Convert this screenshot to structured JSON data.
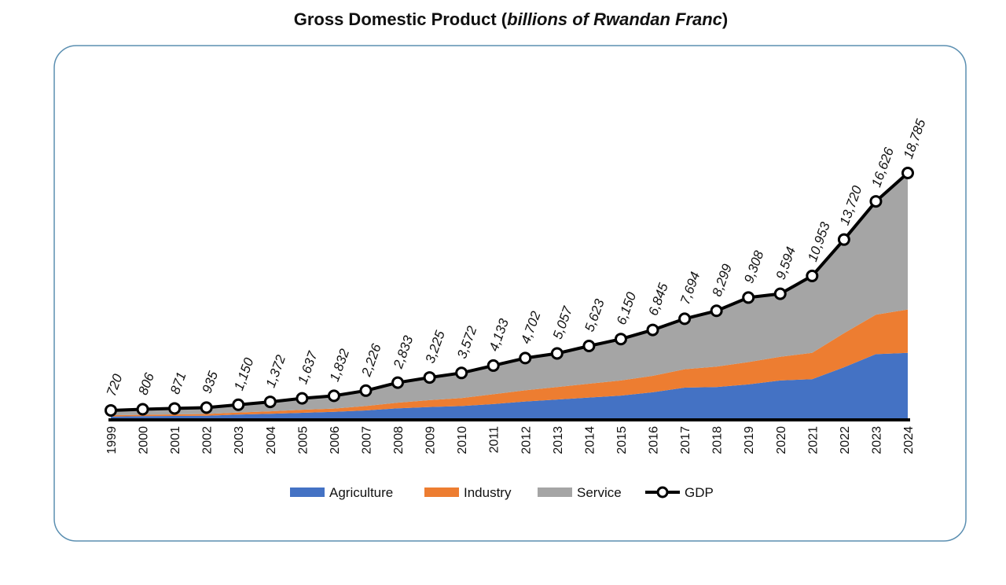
{
  "chart_data": {
    "type": "area",
    "title_main": "Gross Domestic Product (",
    "title_unit": "billions of Rwandan Franc",
    "title_close": ")",
    "xlabel": "",
    "ylabel": "",
    "ylim": [
      0,
      19500
    ],
    "grid": false,
    "legend_position": "bottom",
    "categories": [
      "1999",
      "2000",
      "2001",
      "2002",
      "2003",
      "2004",
      "2005",
      "2006",
      "2007",
      "2008",
      "2009",
      "2010",
      "2011",
      "2012",
      "2013",
      "2014",
      "2015",
      "2016",
      "2017",
      "2018",
      "2019",
      "2020",
      "2021",
      "2022",
      "2023",
      "2024"
    ],
    "series": [
      {
        "name": "Agriculture",
        "kind": "area",
        "color": "#4472C4",
        "values": [
          250,
          280,
          300,
          320,
          400,
          460,
          540,
          610,
          720,
          880,
          980,
          1050,
          1200,
          1400,
          1550,
          1700,
          1850,
          2100,
          2450,
          2500,
          2700,
          3000,
          3100,
          4000,
          5000,
          5100
        ]
      },
      {
        "name": "Industry",
        "kind": "area",
        "color": "#ED7D31",
        "values": [
          100,
          110,
          120,
          130,
          160,
          190,
          230,
          250,
          330,
          430,
          520,
          610,
          750,
          850,
          950,
          1050,
          1150,
          1250,
          1400,
          1550,
          1700,
          1800,
          2000,
          2600,
          3000,
          3300
        ]
      },
      {
        "name": "Service",
        "kind": "area",
        "color": "#A5A5A5",
        "values": [
          370,
          416,
          451,
          485,
          590,
          722,
          867,
          972,
          1176,
          1523,
          1725,
          1912,
          2183,
          2452,
          2557,
          2873,
          3150,
          3495,
          3844,
          4249,
          4908,
          4794,
          5853,
          7120,
          8626,
          10385
        ]
      },
      {
        "name": "GDP",
        "kind": "line",
        "color": "#000000",
        "values": [
          720,
          806,
          871,
          935,
          1150,
          1372,
          1637,
          1832,
          2226,
          2833,
          3225,
          3572,
          4133,
          4702,
          5057,
          5623,
          6150,
          6845,
          7694,
          8299,
          9308,
          9594,
          10953,
          13720,
          16626,
          18785
        ],
        "labels": [
          "720",
          "806",
          "871",
          "935",
          "1,150",
          "1,372",
          "1,637",
          "1,832",
          "2,226",
          "2,833",
          "3,225",
          "3,572",
          "4,133",
          "4,702",
          "5,057",
          "5,623",
          "6,150",
          "6,845",
          "7,694",
          "8,299",
          "9,308",
          "9,594",
          "10,953",
          "13,720",
          "16,626",
          "18,785"
        ]
      }
    ]
  }
}
